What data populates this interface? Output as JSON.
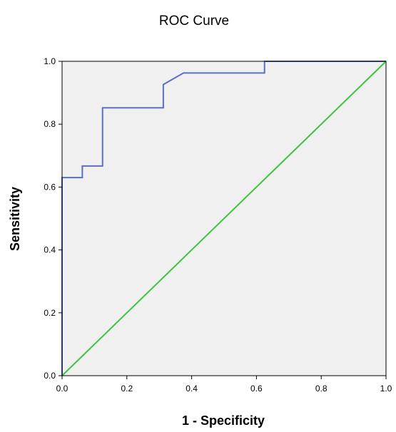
{
  "chart_data": {
    "type": "line",
    "title": "ROC Curve",
    "xlabel": "1 - Specificity",
    "ylabel": "Sensitivity",
    "xlim": [
      0.0,
      1.0
    ],
    "ylim": [
      0.0,
      1.0
    ],
    "x_ticks": [
      "0.0",
      "0.2",
      "0.4",
      "0.6",
      "0.8",
      "1.0"
    ],
    "y_ticks": [
      "0.0",
      "0.2",
      "0.4",
      "0.6",
      "0.8",
      "1.0"
    ],
    "grid": false,
    "plot_background": "#f0f0f0",
    "series": [
      {
        "color": "#5b6fc4",
        "x": [
          0.0,
          0.0,
          0.0625,
          0.0625,
          0.125,
          0.125,
          0.3125,
          0.3125,
          0.375,
          0.625,
          0.625,
          1.0
        ],
        "y": [
          0.0,
          0.63,
          0.63,
          0.667,
          0.667,
          0.852,
          0.852,
          0.926,
          0.963,
          0.963,
          1.0,
          1.0
        ]
      },
      {
        "color": "#3ec43e",
        "x": [
          0.0,
          1.0
        ],
        "y": [
          0.0,
          1.0
        ]
      }
    ]
  }
}
